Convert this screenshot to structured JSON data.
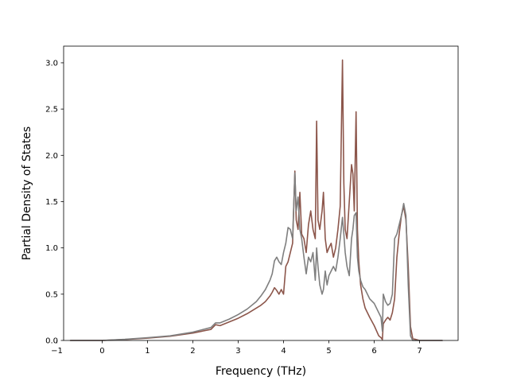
{
  "chart_data": {
    "type": "line",
    "title": "",
    "xlabel": "Frequency (THz)",
    "ylabel": "Partial Density of States",
    "xlim": [
      -0.85,
      7.85
    ],
    "ylim": [
      0.0,
      3.18
    ],
    "xticks": [
      -1,
      0,
      1,
      2,
      3,
      4,
      5,
      6,
      7
    ],
    "yticks": [
      0.0,
      0.5,
      1.0,
      1.5,
      2.0,
      2.5,
      3.0
    ],
    "xtick_labels": [
      "−1",
      "0",
      "1",
      "2",
      "3",
      "4",
      "5",
      "6",
      "7"
    ],
    "ytick_labels": [
      "0.0",
      "0.5",
      "1.0",
      "1.5",
      "2.0",
      "2.5",
      "3.0"
    ],
    "grid": false,
    "legend": "none",
    "series": [
      {
        "color": "#8c564b",
        "x": [
          -0.7,
          0.0,
          0.5,
          1.0,
          1.5,
          2.0,
          2.4,
          2.5,
          2.6,
          2.8,
          3.0,
          3.2,
          3.4,
          3.5,
          3.6,
          3.7,
          3.75,
          3.8,
          3.85,
          3.9,
          3.95,
          4.0,
          4.05,
          4.1,
          4.15,
          4.2,
          4.25,
          4.28,
          4.32,
          4.36,
          4.4,
          4.45,
          4.5,
          4.55,
          4.6,
          4.65,
          4.7,
          4.73,
          4.76,
          4.8,
          4.85,
          4.88,
          4.92,
          4.96,
          5.0,
          5.05,
          5.1,
          5.15,
          5.2,
          5.25,
          5.3,
          5.33,
          5.36,
          5.4,
          5.45,
          5.5,
          5.53,
          5.56,
          5.6,
          5.63,
          5.66,
          5.7,
          5.75,
          5.8,
          5.9,
          6.0,
          6.1,
          6.15,
          6.18,
          6.2,
          6.25,
          6.3,
          6.35,
          6.4,
          6.45,
          6.5,
          6.55,
          6.6,
          6.65,
          6.7,
          6.75,
          6.8,
          6.85,
          7.0,
          7.5
        ],
        "y": [
          0.0,
          0.0,
          0.01,
          0.025,
          0.045,
          0.08,
          0.12,
          0.17,
          0.16,
          0.2,
          0.24,
          0.29,
          0.35,
          0.38,
          0.42,
          0.48,
          0.52,
          0.57,
          0.54,
          0.5,
          0.55,
          0.5,
          0.8,
          0.85,
          0.95,
          1.05,
          1.83,
          1.3,
          1.2,
          1.6,
          1.15,
          1.1,
          0.95,
          1.25,
          1.4,
          1.2,
          1.1,
          2.37,
          1.3,
          1.2,
          1.4,
          1.6,
          1.1,
          0.95,
          1.0,
          1.05,
          0.9,
          1.0,
          1.2,
          1.45,
          3.03,
          1.7,
          1.2,
          1.1,
          1.5,
          1.9,
          1.8,
          1.4,
          2.47,
          1.2,
          0.85,
          0.6,
          0.45,
          0.35,
          0.25,
          0.16,
          0.05,
          0.03,
          0.01,
          0.18,
          0.22,
          0.25,
          0.22,
          0.3,
          0.45,
          0.9,
          1.15,
          1.35,
          1.45,
          1.3,
          0.8,
          0.15,
          0.02,
          0.0,
          0.0
        ]
      },
      {
        "color": "#7f7f7f",
        "x": [
          -0.7,
          0.0,
          0.5,
          1.0,
          1.5,
          2.0,
          2.4,
          2.5,
          2.6,
          2.8,
          3.0,
          3.2,
          3.4,
          3.5,
          3.6,
          3.7,
          3.75,
          3.8,
          3.85,
          3.9,
          3.95,
          4.0,
          4.05,
          4.1,
          4.15,
          4.2,
          4.25,
          4.28,
          4.32,
          4.36,
          4.4,
          4.45,
          4.5,
          4.55,
          4.6,
          4.65,
          4.7,
          4.73,
          4.76,
          4.8,
          4.85,
          4.88,
          4.92,
          4.96,
          5.0,
          5.05,
          5.1,
          5.15,
          5.2,
          5.25,
          5.3,
          5.33,
          5.36,
          5.4,
          5.45,
          5.5,
          5.53,
          5.56,
          5.6,
          5.63,
          5.66,
          5.7,
          5.75,
          5.8,
          5.9,
          6.0,
          6.1,
          6.15,
          6.18,
          6.2,
          6.25,
          6.3,
          6.35,
          6.4,
          6.45,
          6.5,
          6.55,
          6.6,
          6.65,
          6.7,
          6.75,
          6.8,
          6.85,
          7.0,
          7.5
        ],
        "y": [
          0.0,
          0.0,
          0.012,
          0.03,
          0.05,
          0.09,
          0.14,
          0.19,
          0.19,
          0.23,
          0.28,
          0.34,
          0.42,
          0.48,
          0.55,
          0.65,
          0.72,
          0.86,
          0.9,
          0.85,
          0.82,
          0.95,
          1.05,
          1.22,
          1.2,
          1.1,
          1.81,
          1.4,
          1.55,
          1.2,
          1.1,
          0.9,
          0.72,
          0.9,
          0.85,
          0.95,
          0.65,
          1.0,
          0.8,
          0.6,
          0.5,
          0.55,
          0.75,
          0.6,
          0.7,
          0.75,
          0.8,
          0.75,
          0.9,
          1.1,
          1.33,
          1.15,
          0.95,
          0.8,
          0.7,
          1.1,
          1.2,
          1.35,
          1.38,
          0.9,
          0.75,
          0.65,
          0.58,
          0.55,
          0.45,
          0.4,
          0.3,
          0.25,
          0.1,
          0.5,
          0.42,
          0.38,
          0.4,
          0.5,
          1.1,
          1.15,
          1.25,
          1.35,
          1.48,
          1.35,
          0.6,
          0.05,
          0.0,
          0.0,
          0.0
        ]
      }
    ]
  }
}
